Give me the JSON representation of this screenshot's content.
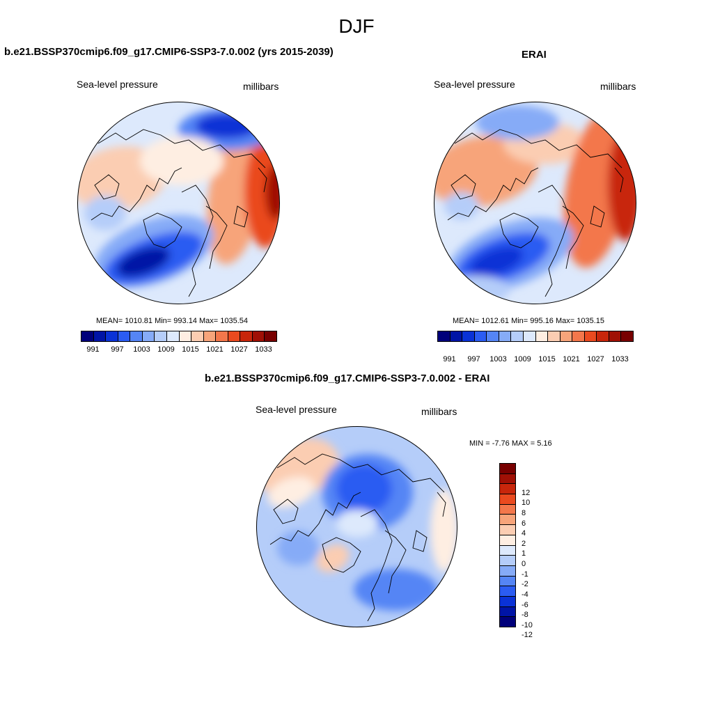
{
  "page_title": "DJF",
  "scale_colors": [
    "#00007a",
    "#0014a6",
    "#0a32d6",
    "#2b5cf2",
    "#5585f5",
    "#86abf7",
    "#b5cdf9",
    "#dde9fc",
    "#feeee2",
    "#fbcdb2",
    "#f7a47a",
    "#f3774b",
    "#ea4a1f",
    "#c8260b",
    "#a01005",
    "#780000"
  ],
  "land_color": "#ffffff",
  "coast_color": "#000000",
  "panels": [
    {
      "id": "model",
      "title": "b.e21.BSSP370cmip6.f09_g17.CMIP6-SSP3-7.0.002 (yrs 2015-2039)",
      "variable": "Sea-level pressure",
      "units": "millibars",
      "stats": "MEAN= 1010.81  Min= 993.14  Max= 1035.54",
      "colorbar_ticks": [
        "991",
        "997",
        "1003",
        "1009",
        "1015",
        "1021",
        "1027",
        "1033"
      ]
    },
    {
      "id": "obs",
      "title": "ERAI",
      "variable": "Sea-level pressure",
      "units": "millibars",
      "stats": "MEAN= 1012.61  Min= 995.16  Max= 1035.15",
      "colorbar_ticks": [
        "991",
        "997",
        "1003",
        "1009",
        "1015",
        "1021",
        "1027",
        "1033"
      ]
    },
    {
      "id": "diff",
      "title": "b.e21.BSSP370cmip6.f09_g17.CMIP6-SSP3-7.0.002 - ERAI",
      "variable": "Sea-level pressure",
      "units": "millibars",
      "stats": "MIN =  -7.76 MAX =   5.16",
      "colorbar_ticks": [
        "12",
        "10",
        "8",
        "6",
        "4",
        "2",
        "1",
        "0",
        "-1",
        "-2",
        "-4",
        "-6",
        "-8",
        "-10",
        "-12"
      ]
    }
  ]
}
